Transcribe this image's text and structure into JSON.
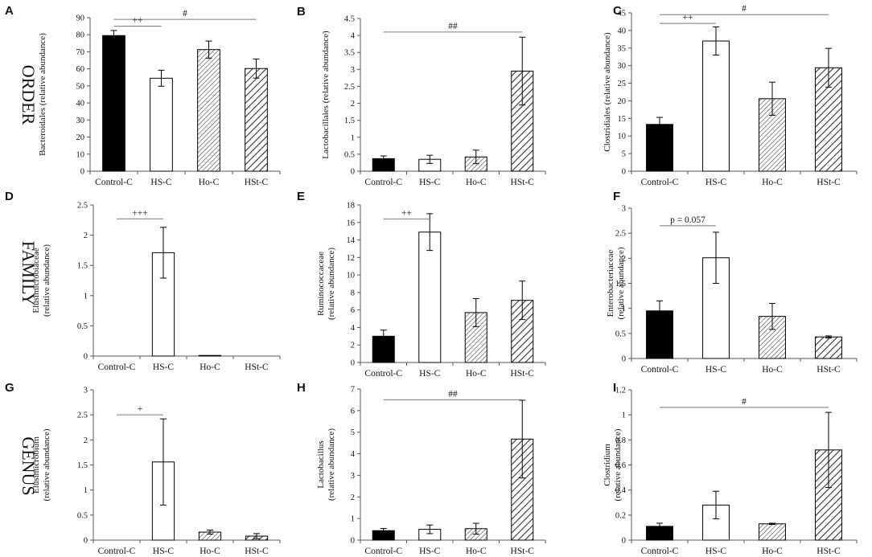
{
  "row_labels": [
    "ORDER",
    "FAMILY",
    "GENUS"
  ],
  "colors": {
    "control": "#000000",
    "hs": "#ffffff",
    "hatch": "#333333",
    "axis": "#555555"
  },
  "chart_data": [
    {
      "id": "A",
      "type": "bar",
      "ylabel": [
        "Bacteroidales (relative abundance)"
      ],
      "categories": [
        "Control-C",
        "HS-C",
        "Ho-C",
        "HSt-C"
      ],
      "values": [
        79.5,
        54.5,
        71.3,
        60.2
      ],
      "errors": [
        3.0,
        4.7,
        5.0,
        5.6
      ],
      "ylim": [
        0,
        90
      ],
      "ystep": 10,
      "annotations": [
        {
          "label": "++",
          "from": 0,
          "to": 1,
          "y": 85
        },
        {
          "label": "#",
          "from": 0,
          "to": 3,
          "y": 89
        }
      ]
    },
    {
      "id": "B",
      "type": "bar",
      "ylabel": [
        "Lactobacillales (relative abundance)"
      ],
      "categories": [
        "Control-C",
        "HS-C",
        "Ho-C",
        "HSt-C"
      ],
      "values": [
        0.37,
        0.35,
        0.42,
        2.95
      ],
      "errors": [
        0.08,
        0.12,
        0.2,
        1.0
      ],
      "ylim": [
        0,
        4.5
      ],
      "ystep": 0.5,
      "annotations": [
        {
          "label": "##",
          "from": 0,
          "to": 3,
          "y": 4.1
        }
      ]
    },
    {
      "id": "C",
      "type": "bar",
      "ylabel": [
        "Clostridiales (relative abundance)"
      ],
      "categories": [
        "Control-C",
        "HS-C",
        "Ho-C",
        "HSt-C"
      ],
      "values": [
        13.3,
        37.0,
        20.6,
        29.4
      ],
      "errors": [
        2.0,
        4.0,
        4.7,
        5.5
      ],
      "ylim": [
        0,
        45
      ],
      "ystep": 5,
      "annotations": [
        {
          "label": "++",
          "from": 0,
          "to": 1,
          "y": 42
        },
        {
          "label": "#",
          "from": 0,
          "to": 3,
          "y": 44.5
        }
      ]
    },
    {
      "id": "D",
      "type": "bar",
      "ylabel": [
        "Elusimicrobiaceae",
        "(relative abundance)"
      ],
      "categories": [
        "Control-C",
        "HS-C",
        "Ho-C",
        "HSt-C"
      ],
      "values": [
        0,
        1.71,
        0.01,
        0
      ],
      "errors": [
        0,
        0.42,
        0,
        0
      ],
      "ylim": [
        0,
        2.5
      ],
      "ystep": 0.5,
      "annotations": [
        {
          "label": "+++",
          "from": 0,
          "to": 1,
          "y": 2.27
        }
      ]
    },
    {
      "id": "E",
      "type": "bar",
      "ylabel": [
        "Ruminococcaceae",
        "(relative abundance)"
      ],
      "categories": [
        "Control-C",
        "HS-C",
        "Ho-C",
        "HSt-C"
      ],
      "values": [
        3.0,
        14.9,
        5.7,
        7.1
      ],
      "errors": [
        0.7,
        2.1,
        1.6,
        2.2
      ],
      "ylim": [
        0,
        18
      ],
      "ystep": 2,
      "annotations": [
        {
          "label": "++",
          "from": 0,
          "to": 1,
          "y": 16.4
        }
      ]
    },
    {
      "id": "F",
      "type": "bar",
      "ylabel": [
        "Enterobacteriaceae",
        "(relative abundance)"
      ],
      "categories": [
        "Control-C",
        "HS-C",
        "Ho-C",
        "HSt-C"
      ],
      "values": [
        0.95,
        2.01,
        0.84,
        0.43
      ],
      "errors": [
        0.2,
        0.51,
        0.26,
        0.02
      ],
      "ylim": [
        0,
        3
      ],
      "ystep": 0.5,
      "annotations": [
        {
          "label": "p = 0.057",
          "from": 0,
          "to": 1,
          "y": 2.65
        }
      ]
    },
    {
      "id": "G",
      "type": "bar",
      "ylabel": [
        "Elusimicrobium",
        "(relative abundance)"
      ],
      "categories": [
        "Control-C",
        "HS-C",
        "Ho-C",
        "HSt-C"
      ],
      "values": [
        0,
        1.56,
        0.16,
        0.08
      ],
      "errors": [
        0,
        0.86,
        0.04,
        0.05
      ],
      "ylim": [
        0,
        3
      ],
      "ystep": 0.5,
      "annotations": [
        {
          "label": "+",
          "from": 0,
          "to": 1,
          "y": 2.5
        }
      ]
    },
    {
      "id": "H",
      "type": "bar",
      "ylabel": [
        "Lactobacillus",
        "(relative abundance)"
      ],
      "categories": [
        "Control-C",
        "HS-C",
        "Ho-C",
        "HSt-C"
      ],
      "values": [
        0.44,
        0.5,
        0.53,
        4.68
      ],
      "errors": [
        0.1,
        0.2,
        0.25,
        1.8
      ],
      "ylim": [
        0,
        7
      ],
      "ystep": 1,
      "annotations": [
        {
          "label": "##",
          "from": 0,
          "to": 3,
          "y": 6.5
        }
      ]
    },
    {
      "id": "I",
      "type": "bar",
      "ylabel": [
        "Clostridium",
        "(relative abundance)"
      ],
      "categories": [
        "Control-C",
        "HS-C",
        "Ho-C",
        "HSt-C"
      ],
      "values": [
        0.11,
        0.28,
        0.13,
        0.72
      ],
      "errors": [
        0.025,
        0.11,
        0.005,
        0.3
      ],
      "ylim": [
        0,
        1.2
      ],
      "ystep": 0.2,
      "annotations": [
        {
          "label": "#",
          "from": 0,
          "to": 3,
          "y": 1.06
        }
      ]
    }
  ]
}
